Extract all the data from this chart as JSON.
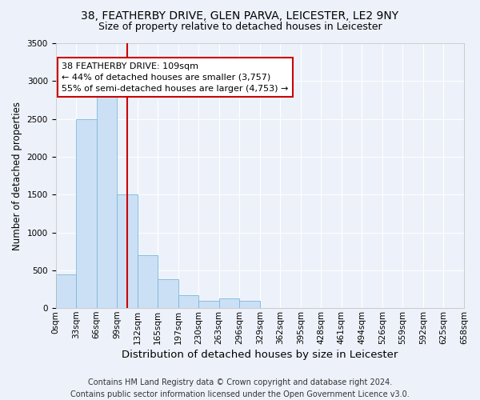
{
  "title1": "38, FEATHERBY DRIVE, GLEN PARVA, LEICESTER, LE2 9NY",
  "title2": "Size of property relative to detached houses in Leicester",
  "xlabel": "Distribution of detached houses by size in Leicester",
  "ylabel": "Number of detached properties",
  "footer": "Contains HM Land Registry data © Crown copyright and database right 2024.\nContains public sector information licensed under the Open Government Licence v3.0.",
  "bin_labels": [
    "0sqm",
    "33sqm",
    "66sqm",
    "99sqm",
    "132sqm",
    "165sqm",
    "197sqm",
    "230sqm",
    "263sqm",
    "296sqm",
    "329sqm",
    "362sqm",
    "395sqm",
    "428sqm",
    "461sqm",
    "494sqm",
    "526sqm",
    "559sqm",
    "592sqm",
    "625sqm",
    "658sqm"
  ],
  "bar_heights": [
    450,
    2500,
    2800,
    1500,
    700,
    380,
    170,
    100,
    130,
    100,
    0,
    0,
    0,
    0,
    0,
    0,
    0,
    0,
    0,
    0
  ],
  "bar_color": "#cce0f5",
  "bar_edge_color": "#7ab8d9",
  "vline_color": "#cc0000",
  "annotation_text": "38 FEATHERBY DRIVE: 109sqm\n← 44% of detached houses are smaller (3,757)\n55% of semi-detached houses are larger (4,753) →",
  "ylim": [
    0,
    3500
  ],
  "yticks": [
    0,
    500,
    1000,
    1500,
    2000,
    2500,
    3000,
    3500
  ],
  "bg_color": "#edf2fa",
  "plot_bg_color": "#edf2fa",
  "grid_color": "#ffffff",
  "title1_fontsize": 10,
  "title2_fontsize": 9,
  "xlabel_fontsize": 9.5,
  "ylabel_fontsize": 8.5,
  "annotation_fontsize": 8,
  "footer_fontsize": 7,
  "tick_fontsize": 7.5
}
